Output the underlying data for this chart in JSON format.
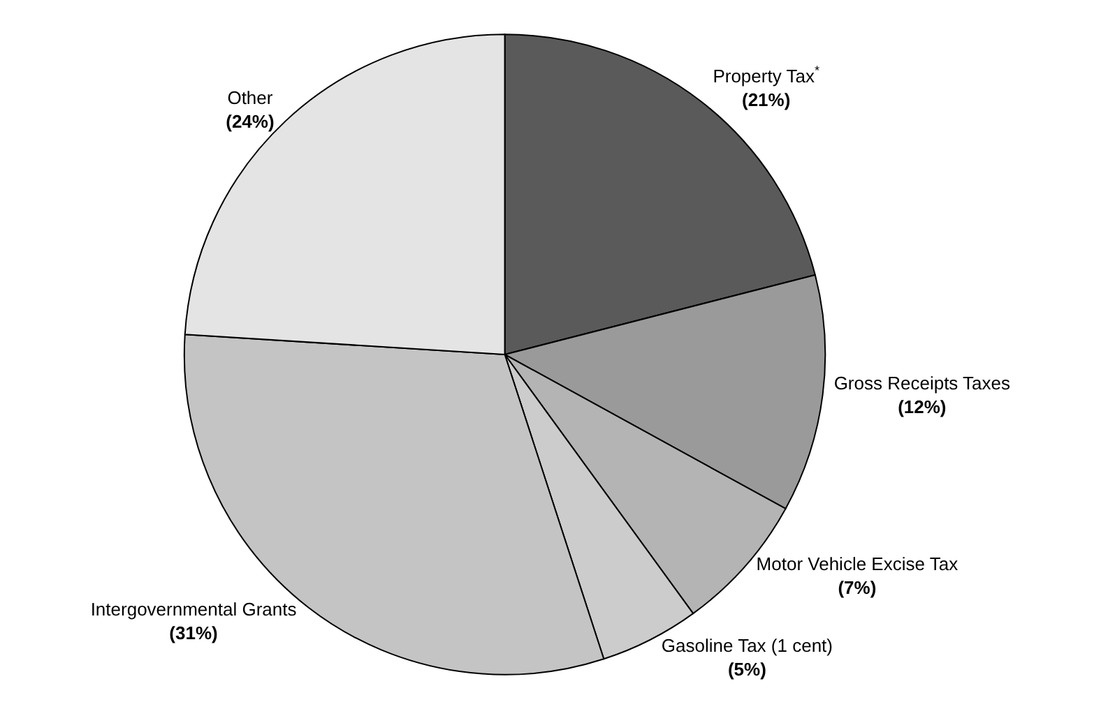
{
  "chart_data": {
    "type": "pie",
    "categories": [
      "Property Tax$^{*}$",
      "Gross Receipts Taxes",
      "Motor Vehicle Excise Tax",
      "Gasoline Tax (1 cent)",
      "Intergovernmental Grants",
      "Other"
    ],
    "values": [
      21,
      12,
      7,
      5,
      31,
      24
    ],
    "value_labels": [
      "(21%)",
      "(12%)",
      "(7%)",
      "(5%)",
      "(31%)",
      "(24%)"
    ],
    "colors": [
      "#5a5a5a",
      "#9a9a9a",
      "#b4b4b4",
      "#cccccc",
      "#c4c4c4",
      "#e4e4e4"
    ],
    "legend": false
  }
}
